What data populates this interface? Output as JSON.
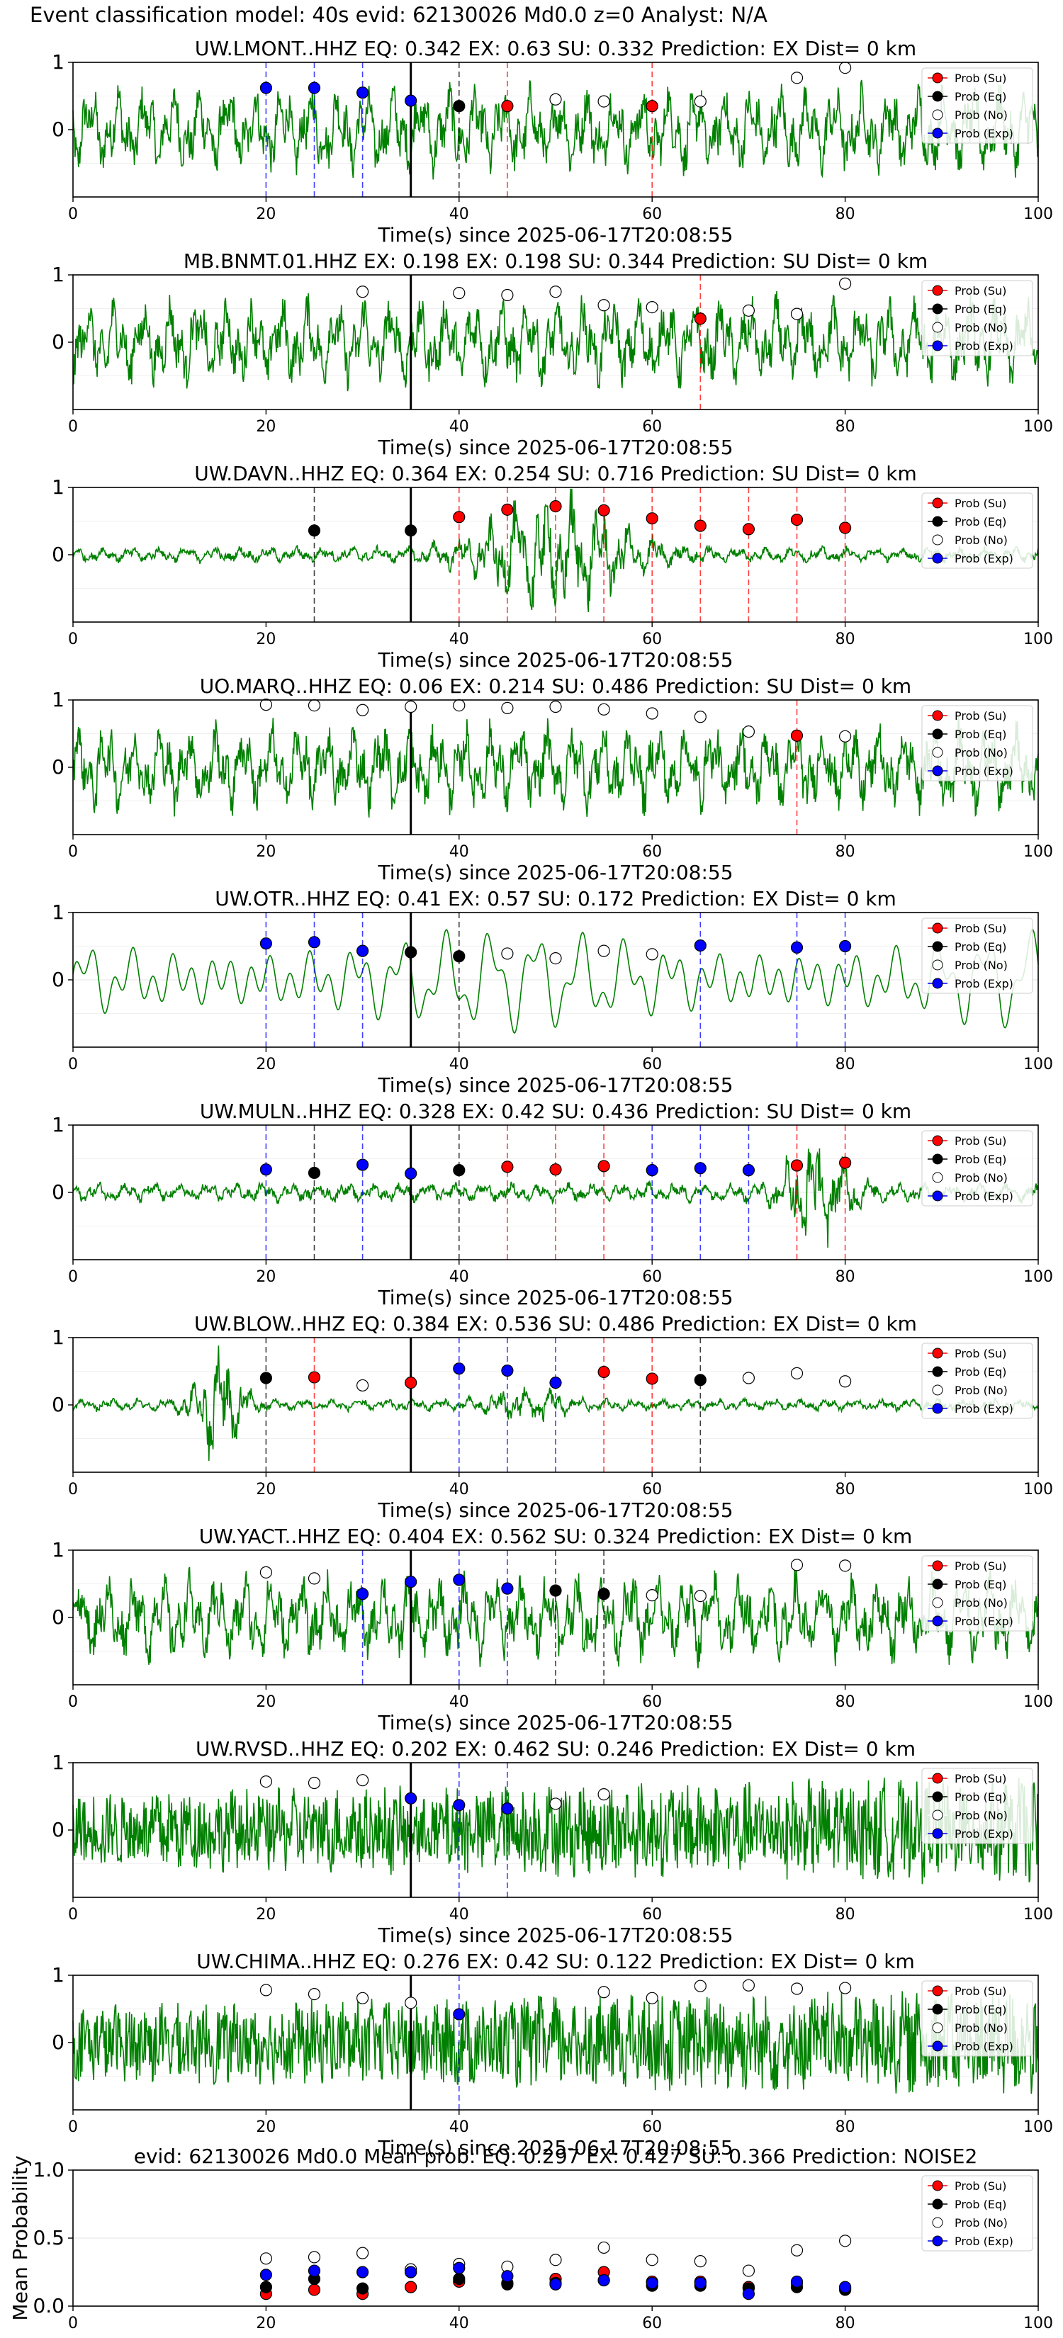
{
  "figure": {
    "title": "Event classification model: 40s evid: 62130026 Md0.0 z=0 Analyst: N/A"
  },
  "legend_labels": [
    "Prob (Su)",
    "Prob (Eq)",
    "Prob (No)",
    "Prob (Exp)"
  ],
  "colors": {
    "Su": "#ff0000",
    "Eq": "#000000",
    "No": "#ffffff",
    "Exp": "#0000ff",
    "waveform": "#008000"
  },
  "chart_data": [
    {
      "type": "line",
      "title": "UW.LMONT..HHZ   EQ: 0.342  EX: 0.63  SU: 0.332   Prediction: EX    Dist= 0 km",
      "xlabel": "Time(s) since 2025-06-17T20:08:55",
      "xlim": [
        0,
        100
      ],
      "ylim": [
        -1,
        1
      ],
      "xticks": [
        0,
        20,
        40,
        60,
        80,
        100
      ],
      "yticks": [
        1,
        0
      ],
      "signal_type": "normal",
      "grid": true,
      "legend": "top-right",
      "markers": [
        {
          "t": 20,
          "p": 0.62,
          "c": "Exp"
        },
        {
          "t": 25,
          "p": 0.62,
          "c": "Exp"
        },
        {
          "t": 30,
          "p": 0.55,
          "c": "Exp"
        },
        {
          "t": 35,
          "p": 0.43,
          "c": "Exp"
        },
        {
          "t": 40,
          "p": 0.35,
          "c": "Eq"
        },
        {
          "t": 45,
          "p": 0.35,
          "c": "Su"
        },
        {
          "t": 50,
          "p": 0.45,
          "c": "No"
        },
        {
          "t": 55,
          "p": 0.42,
          "c": "No"
        },
        {
          "t": 60,
          "p": 0.35,
          "c": "Su"
        },
        {
          "t": 65,
          "p": 0.42,
          "c": "No"
        },
        {
          "t": 75,
          "p": 0.77,
          "c": "No"
        },
        {
          "t": 80,
          "p": 0.92,
          "c": "No"
        }
      ]
    },
    {
      "type": "line",
      "title": "MB.BNMT.01.HHZ   EX: 0.198  EX: 0.198  SU: 0.344   Prediction: SU    Dist= 0 km",
      "xlabel": "Time(s) since 2025-06-17T20:08:55",
      "xlim": [
        0,
        100
      ],
      "ylim": [
        -1,
        1
      ],
      "xticks": [
        0,
        20,
        40,
        60,
        80,
        100
      ],
      "yticks": [
        1,
        0
      ],
      "signal_type": "normal",
      "grid": true,
      "legend": "top-right",
      "markers": [
        {
          "t": 30,
          "p": 0.75,
          "c": "No"
        },
        {
          "t": 40,
          "p": 0.73,
          "c": "No"
        },
        {
          "t": 45,
          "p": 0.7,
          "c": "No"
        },
        {
          "t": 50,
          "p": 0.75,
          "c": "No"
        },
        {
          "t": 55,
          "p": 0.55,
          "c": "No"
        },
        {
          "t": 60,
          "p": 0.52,
          "c": "No"
        },
        {
          "t": 65,
          "p": 0.35,
          "c": "Su"
        },
        {
          "t": 70,
          "p": 0.47,
          "c": "No"
        },
        {
          "t": 75,
          "p": 0.42,
          "c": "No"
        },
        {
          "t": 80,
          "p": 0.87,
          "c": "No"
        }
      ]
    },
    {
      "type": "line",
      "title": "UW.DAVN..HHZ   EQ: 0.364  EX: 0.254  SU: 0.716   Prediction: SU    Dist= 0 km",
      "xlabel": "Time(s) since 2025-06-17T20:08:55",
      "xlim": [
        0,
        100
      ],
      "ylim": [
        -1,
        1
      ],
      "xticks": [
        0,
        20,
        40,
        60,
        80,
        100
      ],
      "yticks": [
        1,
        0
      ],
      "signal_type": "burst_mid",
      "grid": true,
      "legend": "top-right",
      "markers": [
        {
          "t": 25,
          "p": 0.36,
          "c": "Eq"
        },
        {
          "t": 35,
          "p": 0.36,
          "c": "Eq"
        },
        {
          "t": 40,
          "p": 0.56,
          "c": "Su"
        },
        {
          "t": 45,
          "p": 0.67,
          "c": "Su"
        },
        {
          "t": 50,
          "p": 0.72,
          "c": "Su"
        },
        {
          "t": 55,
          "p": 0.66,
          "c": "Su"
        },
        {
          "t": 60,
          "p": 0.54,
          "c": "Su"
        },
        {
          "t": 65,
          "p": 0.43,
          "c": "Su"
        },
        {
          "t": 70,
          "p": 0.38,
          "c": "Su"
        },
        {
          "t": 75,
          "p": 0.52,
          "c": "Su"
        },
        {
          "t": 80,
          "p": 0.4,
          "c": "Su"
        }
      ]
    },
    {
      "type": "line",
      "title": "UO.MARQ..HHZ   EQ: 0.06  EX: 0.214  SU: 0.486   Prediction: SU    Dist= 0 km",
      "xlabel": "Time(s) since 2025-06-17T20:08:55",
      "xlim": [
        0,
        100
      ],
      "ylim": [
        -1,
        1
      ],
      "xticks": [
        0,
        20,
        40,
        60,
        80,
        100
      ],
      "yticks": [
        1,
        0
      ],
      "signal_type": "normal",
      "grid": true,
      "legend": "top-right",
      "markers": [
        {
          "t": 20,
          "p": 0.93,
          "c": "No"
        },
        {
          "t": 25,
          "p": 0.92,
          "c": "No"
        },
        {
          "t": 30,
          "p": 0.85,
          "c": "No"
        },
        {
          "t": 35,
          "p": 0.9,
          "c": "No"
        },
        {
          "t": 40,
          "p": 0.92,
          "c": "No"
        },
        {
          "t": 45,
          "p": 0.88,
          "c": "No"
        },
        {
          "t": 50,
          "p": 0.9,
          "c": "No"
        },
        {
          "t": 55,
          "p": 0.86,
          "c": "No"
        },
        {
          "t": 60,
          "p": 0.8,
          "c": "No"
        },
        {
          "t": 65,
          "p": 0.75,
          "c": "No"
        },
        {
          "t": 70,
          "p": 0.53,
          "c": "No"
        },
        {
          "t": 75,
          "p": 0.47,
          "c": "Su"
        },
        {
          "t": 80,
          "p": 0.46,
          "c": "No"
        }
      ]
    },
    {
      "type": "line",
      "title": "UW.OTR..HHZ   EQ: 0.41  EX: 0.57  SU: 0.172   Prediction: EX    Dist= 0 km",
      "xlabel": "Time(s) since 2025-06-17T20:08:55",
      "xlim": [
        0,
        100
      ],
      "ylim": [
        -1,
        1
      ],
      "xticks": [
        0,
        20,
        40,
        60,
        80,
        100
      ],
      "yticks": [
        1,
        0
      ],
      "signal_type": "smooth",
      "grid": true,
      "legend": "top-right",
      "markers": [
        {
          "t": 20,
          "p": 0.54,
          "c": "Exp"
        },
        {
          "t": 25,
          "p": 0.56,
          "c": "Exp"
        },
        {
          "t": 30,
          "p": 0.43,
          "c": "Exp"
        },
        {
          "t": 35,
          "p": 0.41,
          "c": "Eq"
        },
        {
          "t": 40,
          "p": 0.35,
          "c": "Eq"
        },
        {
          "t": 45,
          "p": 0.39,
          "c": "No"
        },
        {
          "t": 50,
          "p": 0.32,
          "c": "No"
        },
        {
          "t": 55,
          "p": 0.43,
          "c": "No"
        },
        {
          "t": 60,
          "p": 0.38,
          "c": "No"
        },
        {
          "t": 65,
          "p": 0.51,
          "c": "Exp"
        },
        {
          "t": 75,
          "p": 0.48,
          "c": "Exp"
        },
        {
          "t": 80,
          "p": 0.5,
          "c": "Exp"
        }
      ]
    },
    {
      "type": "line",
      "title": "UW.MULN..HHZ   EQ: 0.328  EX: 0.42  SU: 0.436   Prediction: SU    Dist= 0 km",
      "xlabel": "Time(s) since 2025-06-17T20:08:55",
      "xlim": [
        0,
        100
      ],
      "ylim": [
        -1,
        1
      ],
      "xticks": [
        0,
        20,
        40,
        60,
        80,
        100
      ],
      "yticks": [
        1,
        0
      ],
      "signal_type": "burst_late",
      "grid": true,
      "legend": "top-right",
      "markers": [
        {
          "t": 20,
          "p": 0.34,
          "c": "Exp"
        },
        {
          "t": 25,
          "p": 0.29,
          "c": "Eq"
        },
        {
          "t": 30,
          "p": 0.41,
          "c": "Exp"
        },
        {
          "t": 35,
          "p": 0.28,
          "c": "Exp"
        },
        {
          "t": 40,
          "p": 0.33,
          "c": "Eq"
        },
        {
          "t": 45,
          "p": 0.38,
          "c": "Su"
        },
        {
          "t": 50,
          "p": 0.34,
          "c": "Su"
        },
        {
          "t": 55,
          "p": 0.39,
          "c": "Su"
        },
        {
          "t": 60,
          "p": 0.33,
          "c": "Exp"
        },
        {
          "t": 65,
          "p": 0.36,
          "c": "Exp"
        },
        {
          "t": 70,
          "p": 0.33,
          "c": "Exp"
        },
        {
          "t": 75,
          "p": 0.4,
          "c": "Su"
        },
        {
          "t": 80,
          "p": 0.44,
          "c": "Su"
        }
      ]
    },
    {
      "type": "line",
      "title": "UW.BLOW..HHZ   EQ: 0.384  EX: 0.536  SU: 0.486   Prediction: EX    Dist= 0 km",
      "xlabel": "Time(s) since 2025-06-17T20:08:55",
      "xlim": [
        0,
        100
      ],
      "ylim": [
        -1,
        1
      ],
      "xticks": [
        0,
        20,
        40,
        60,
        80,
        100
      ],
      "yticks": [
        1,
        0
      ],
      "signal_type": "burst_early",
      "grid": true,
      "legend": "top-right",
      "markers": [
        {
          "t": 20,
          "p": 0.4,
          "c": "Eq"
        },
        {
          "t": 25,
          "p": 0.41,
          "c": "Su"
        },
        {
          "t": 30,
          "p": 0.29,
          "c": "No"
        },
        {
          "t": 35,
          "p": 0.33,
          "c": "Su"
        },
        {
          "t": 40,
          "p": 0.54,
          "c": "Exp"
        },
        {
          "t": 45,
          "p": 0.51,
          "c": "Exp"
        },
        {
          "t": 50,
          "p": 0.33,
          "c": "Exp"
        },
        {
          "t": 55,
          "p": 0.49,
          "c": "Su"
        },
        {
          "t": 60,
          "p": 0.39,
          "c": "Su"
        },
        {
          "t": 65,
          "p": 0.37,
          "c": "Eq"
        },
        {
          "t": 70,
          "p": 0.4,
          "c": "No"
        },
        {
          "t": 75,
          "p": 0.47,
          "c": "No"
        },
        {
          "t": 80,
          "p": 0.35,
          "c": "No"
        }
      ]
    },
    {
      "type": "line",
      "title": "UW.YACT..HHZ   EQ: 0.404  EX: 0.562  SU: 0.324   Prediction: EX    Dist= 0 km",
      "xlabel": "Time(s) since 2025-06-17T20:08:55",
      "xlim": [
        0,
        100
      ],
      "ylim": [
        -1,
        1
      ],
      "xticks": [
        0,
        20,
        40,
        60,
        80,
        100
      ],
      "yticks": [
        1,
        0
      ],
      "signal_type": "normal",
      "grid": true,
      "legend": "top-right",
      "markers": [
        {
          "t": 20,
          "p": 0.67,
          "c": "No"
        },
        {
          "t": 25,
          "p": 0.58,
          "c": "No"
        },
        {
          "t": 30,
          "p": 0.35,
          "c": "Exp"
        },
        {
          "t": 35,
          "p": 0.53,
          "c": "Exp"
        },
        {
          "t": 40,
          "p": 0.56,
          "c": "Exp"
        },
        {
          "t": 45,
          "p": 0.43,
          "c": "Exp"
        },
        {
          "t": 50,
          "p": 0.4,
          "c": "Eq"
        },
        {
          "t": 55,
          "p": 0.35,
          "c": "Eq"
        },
        {
          "t": 60,
          "p": 0.33,
          "c": "No"
        },
        {
          "t": 65,
          "p": 0.32,
          "c": "No"
        },
        {
          "t": 75,
          "p": 0.78,
          "c": "No"
        },
        {
          "t": 80,
          "p": 0.77,
          "c": "No"
        }
      ]
    },
    {
      "type": "line",
      "title": "UW.RVSD..HHZ   EQ: 0.202  EX: 0.462  SU: 0.246   Prediction: EX    Dist= 0 km",
      "xlabel": "Time(s) since 2025-06-17T20:08:55",
      "xlim": [
        0,
        100
      ],
      "ylim": [
        -1,
        1
      ],
      "xticks": [
        0,
        20,
        40,
        60,
        80,
        100
      ],
      "yticks": [
        1,
        0
      ],
      "signal_type": "dense",
      "grid": true,
      "legend": "top-right",
      "markers": [
        {
          "t": 20,
          "p": 0.72,
          "c": "No"
        },
        {
          "t": 25,
          "p": 0.7,
          "c": "No"
        },
        {
          "t": 30,
          "p": 0.74,
          "c": "No"
        },
        {
          "t": 35,
          "p": 0.47,
          "c": "Exp"
        },
        {
          "t": 40,
          "p": 0.37,
          "c": "Exp"
        },
        {
          "t": 45,
          "p": 0.32,
          "c": "Exp"
        },
        {
          "t": 50,
          "p": 0.39,
          "c": "No"
        },
        {
          "t": 55,
          "p": 0.53,
          "c": "No"
        }
      ]
    },
    {
      "type": "line",
      "title": "UW.CHIMA..HHZ   EQ: 0.276  EX: 0.42  SU: 0.122   Prediction: EX    Dist= 0 km",
      "xlabel": "Time(s) since 2025-06-17T20:08:55",
      "xlim": [
        0,
        100
      ],
      "ylim": [
        -1,
        1
      ],
      "xticks": [
        0,
        20,
        40,
        60,
        80,
        100
      ],
      "yticks": [
        1,
        0
      ],
      "signal_type": "dense",
      "grid": true,
      "legend": "top-right",
      "markers": [
        {
          "t": 20,
          "p": 0.78,
          "c": "No"
        },
        {
          "t": 25,
          "p": 0.72,
          "c": "No"
        },
        {
          "t": 30,
          "p": 0.66,
          "c": "No"
        },
        {
          "t": 35,
          "p": 0.59,
          "c": "No"
        },
        {
          "t": 40,
          "p": 0.42,
          "c": "Exp"
        },
        {
          "t": 55,
          "p": 0.75,
          "c": "No"
        },
        {
          "t": 60,
          "p": 0.66,
          "c": "No"
        },
        {
          "t": 65,
          "p": 0.84,
          "c": "No"
        },
        {
          "t": 70,
          "p": 0.85,
          "c": "No"
        },
        {
          "t": 75,
          "p": 0.8,
          "c": "No"
        },
        {
          "t": 80,
          "p": 0.81,
          "c": "No"
        }
      ]
    },
    {
      "type": "scatter",
      "title": "evid: 62130026  Md0.0   Mean prob:   EQ: 0.297  EX: 0.427  SU: 0.366   Prediction: NOISE2",
      "xlabel": "",
      "ylabel": "Mean Probability",
      "xlim": [
        0,
        100
      ],
      "ylim": [
        0,
        1
      ],
      "xticks": [
        0,
        20,
        40,
        60,
        80,
        100
      ],
      "yticks": [
        1.0,
        0.5,
        0.0
      ],
      "grid": true,
      "legend": "top-right",
      "series": [
        {
          "name": "Prob (Su)",
          "c": "Su",
          "x": [
            20,
            25,
            30,
            35,
            40,
            45,
            50,
            55,
            60,
            65,
            70,
            75,
            80
          ],
          "y": [
            0.09,
            0.12,
            0.09,
            0.14,
            0.18,
            0.17,
            0.2,
            0.25,
            0.18,
            0.18,
            0.14,
            0.17,
            0.13
          ]
        },
        {
          "name": "Prob (Eq)",
          "c": "Eq",
          "x": [
            20,
            25,
            30,
            35,
            40,
            45,
            50,
            55,
            60,
            65,
            70,
            75,
            80
          ],
          "y": [
            0.14,
            0.2,
            0.13,
            0.25,
            0.2,
            0.16,
            0.17,
            0.19,
            0.15,
            0.15,
            0.13,
            0.14,
            0.12
          ]
        },
        {
          "name": "Prob (No)",
          "c": "No",
          "x": [
            20,
            25,
            30,
            35,
            40,
            45,
            50,
            55,
            60,
            65,
            70,
            75,
            80
          ],
          "y": [
            0.35,
            0.36,
            0.39,
            0.27,
            0.31,
            0.29,
            0.34,
            0.43,
            0.34,
            0.33,
            0.26,
            0.41,
            0.48
          ]
        },
        {
          "name": "Prob (Exp)",
          "c": "Exp",
          "x": [
            20,
            25,
            30,
            35,
            40,
            45,
            50,
            55,
            60,
            65,
            70,
            75,
            80
          ],
          "y": [
            0.23,
            0.26,
            0.25,
            0.25,
            0.28,
            0.22,
            0.16,
            0.19,
            0.17,
            0.17,
            0.09,
            0.18,
            0.14
          ]
        }
      ]
    }
  ]
}
